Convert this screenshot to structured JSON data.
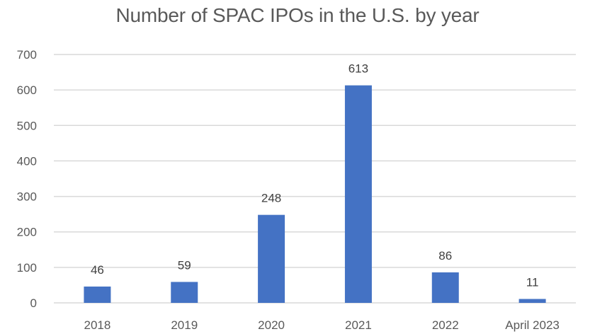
{
  "chart_data": {
    "type": "bar",
    "title": "Number of SPAC IPOs in the U.S. by year",
    "xlabel": "",
    "ylabel": "",
    "categories": [
      "2018",
      "2019",
      "2020",
      "2021",
      "2022",
      "April 2023"
    ],
    "series": [
      {
        "name": "SPAC IPOs",
        "values": [
          46,
          59,
          248,
          613,
          86,
          11
        ],
        "color": "#4472c4"
      }
    ],
    "data_labels": [
      "46",
      "59",
      "248",
      "613",
      "86",
      "11"
    ],
    "ylim": [
      0,
      700
    ],
    "yticks": [
      0,
      100,
      200,
      300,
      400,
      500,
      600,
      700
    ],
    "ytick_labels": [
      "0",
      "100",
      "200",
      "300",
      "400",
      "500",
      "600",
      "700"
    ],
    "grid": true,
    "legend": "none"
  }
}
